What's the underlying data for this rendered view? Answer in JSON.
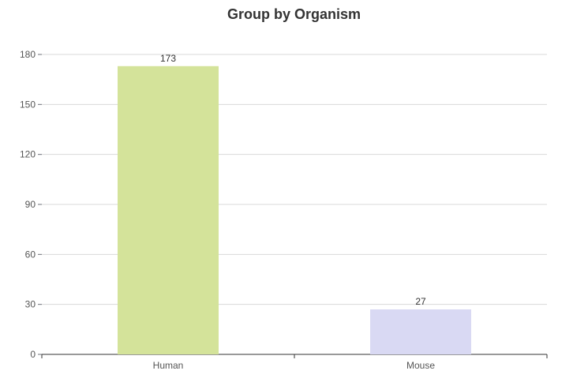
{
  "chart_data": {
    "type": "bar",
    "title": "Group by Organism",
    "xlabel": "",
    "ylabel": "",
    "categories": [
      "Human",
      "Mouse"
    ],
    "values": [
      173,
      27
    ],
    "bar_colors": [
      "#d4e39a",
      "#d9d9f3"
    ],
    "ylim": [
      0,
      180
    ],
    "yticks": [
      0,
      30,
      60,
      90,
      120,
      150,
      180
    ],
    "grid": true,
    "legend": "none"
  }
}
